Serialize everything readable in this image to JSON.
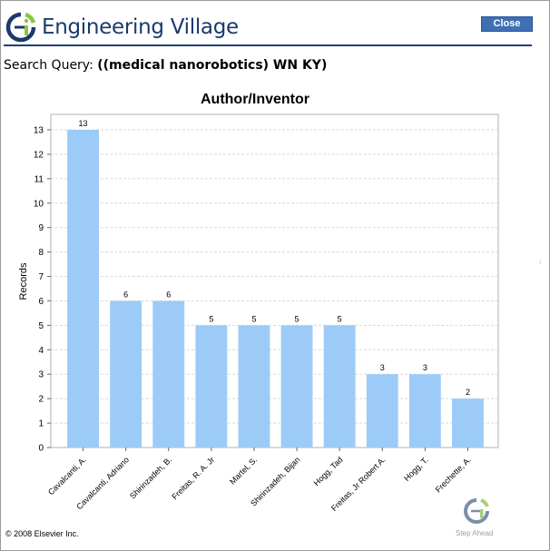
{
  "header": {
    "brand": "Engineering Village",
    "close_label": "Close"
  },
  "query": {
    "label": "Search Query:",
    "value": "((medical nanorobotics) WN KY)"
  },
  "footer": {
    "copyright": "© 2008 Elsevier Inc.",
    "tagline": "Step Ahead"
  },
  "colors": {
    "bar": "#9ccbf7",
    "brand_blue": "#1b3a6b",
    "brand_green": "#8cc63f",
    "button": "#3f6fb5"
  },
  "chart_data": {
    "type": "bar",
    "title": "Author/Inventor",
    "xlabel": "",
    "ylabel": "Records",
    "ylim": [
      0,
      13
    ],
    "yticks": [
      0,
      1,
      2,
      3,
      4,
      5,
      6,
      7,
      8,
      9,
      10,
      11,
      12,
      13
    ],
    "grid": true,
    "categories": [
      "Cavalcanti, A.",
      "Cavalcanti, Adriano",
      "Shirinzadeh, B.",
      "Freitas, R. A. Jr",
      "Martel, S.",
      "Shirinzadeh, Bijan",
      "Hogg, Tad",
      "Freitas, Jr Robert A.",
      "Hogg, T.",
      "Frechette, A."
    ],
    "values": [
      13,
      6,
      6,
      5,
      5,
      5,
      5,
      3,
      3,
      2
    ]
  }
}
